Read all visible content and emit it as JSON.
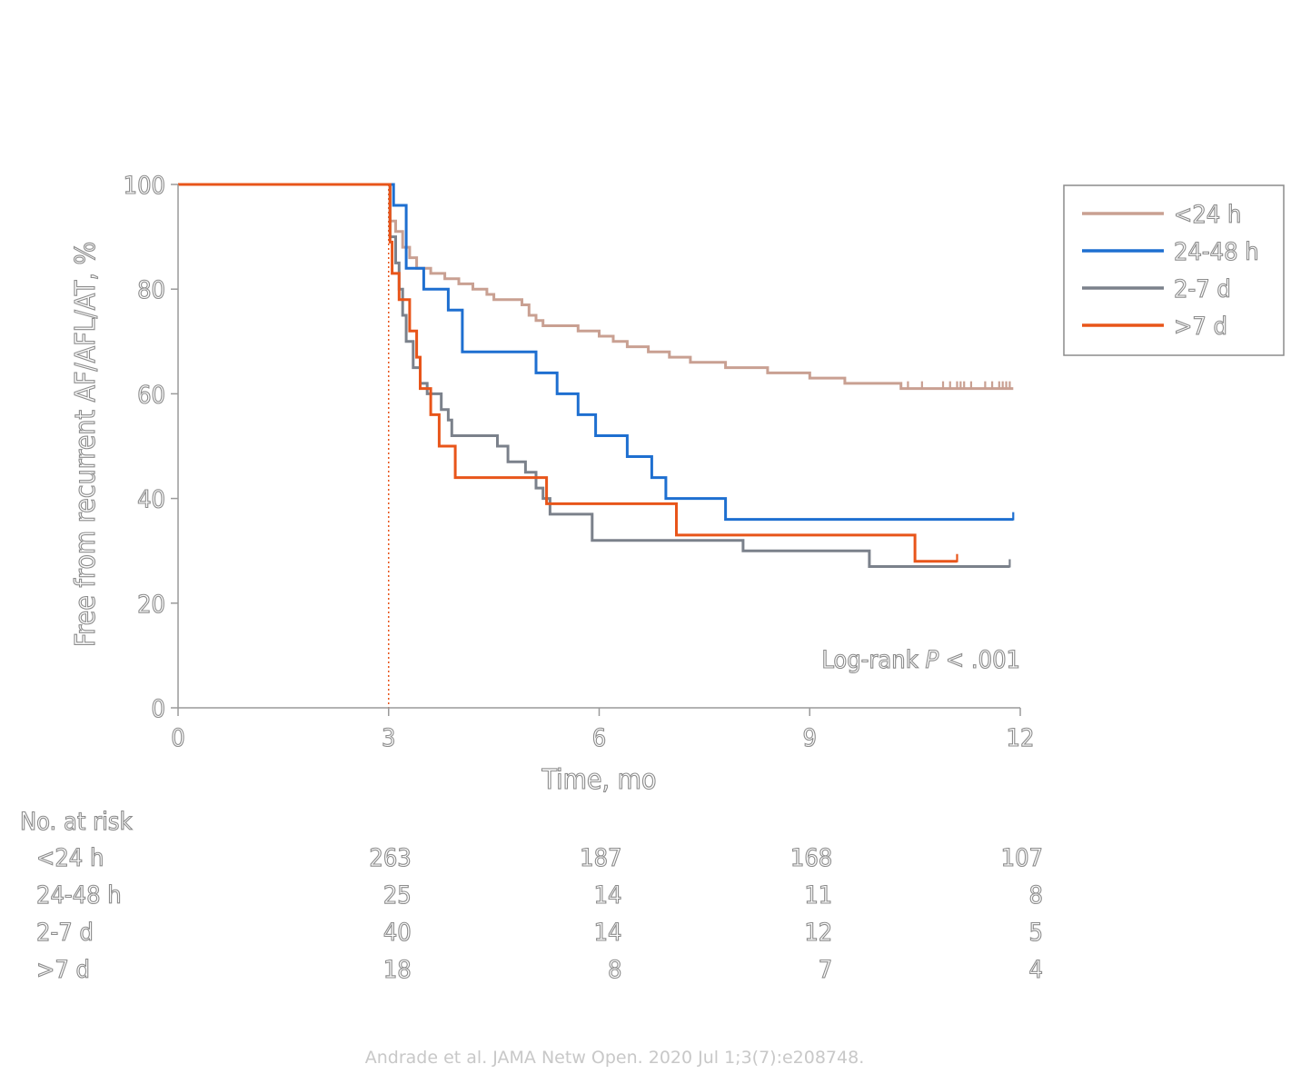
{
  "chart_data": {
    "type": "line",
    "step": true,
    "ylabel": "Free from recurrent AF/AFL/AT, %",
    "xlabel": "Time, mo",
    "xlim": [
      0,
      12
    ],
    "ylim": [
      0,
      100
    ],
    "x_ticks": [
      "0",
      "3",
      "6",
      "9",
      "12"
    ],
    "y_ticks": [
      "0",
      "20",
      "40",
      "60",
      "80",
      "100"
    ],
    "reference_line_x": 3,
    "annotation": {
      "text_main": "Log-rank ",
      "text_italic": "P",
      "text_tail": " < .001"
    },
    "legend": {
      "position": "top-right"
    },
    "series": [
      {
        "name": "<24 h",
        "color": "#c9a092",
        "points": [
          [
            0,
            100
          ],
          [
            3.02,
            100
          ],
          [
            3.02,
            93
          ],
          [
            3.1,
            91
          ],
          [
            3.2,
            88
          ],
          [
            3.3,
            86
          ],
          [
            3.4,
            84
          ],
          [
            3.6,
            83
          ],
          [
            3.8,
            82
          ],
          [
            4.0,
            81
          ],
          [
            4.2,
            80
          ],
          [
            4.4,
            79
          ],
          [
            4.5,
            78
          ],
          [
            4.9,
            77
          ],
          [
            5.0,
            75
          ],
          [
            5.1,
            74
          ],
          [
            5.2,
            73
          ],
          [
            5.6,
            73
          ],
          [
            5.7,
            72
          ],
          [
            6.0,
            71
          ],
          [
            6.2,
            70
          ],
          [
            6.4,
            69
          ],
          [
            6.7,
            68
          ],
          [
            7.0,
            67
          ],
          [
            7.3,
            66
          ],
          [
            7.8,
            65
          ],
          [
            8.4,
            64
          ],
          [
            9.0,
            63
          ],
          [
            9.5,
            62
          ],
          [
            10.3,
            61
          ],
          [
            11.9,
            61
          ]
        ],
        "censor_x": [
          10.4,
          10.6,
          10.9,
          11.0,
          11.1,
          11.15,
          11.2,
          11.3,
          11.5,
          11.6,
          11.7,
          11.75,
          11.8,
          11.85
        ]
      },
      {
        "name": "24-48 h",
        "color": "#1e6fd0",
        "points": [
          [
            0,
            100
          ],
          [
            3.07,
            100
          ],
          [
            3.07,
            96
          ],
          [
            3.25,
            96
          ],
          [
            3.25,
            84
          ],
          [
            3.5,
            84
          ],
          [
            3.5,
            80
          ],
          [
            3.85,
            80
          ],
          [
            3.85,
            76
          ],
          [
            4.05,
            76
          ],
          [
            4.05,
            68
          ],
          [
            5.1,
            68
          ],
          [
            5.1,
            64
          ],
          [
            5.4,
            64
          ],
          [
            5.4,
            60
          ],
          [
            5.7,
            60
          ],
          [
            5.7,
            56
          ],
          [
            5.95,
            56
          ],
          [
            5.95,
            52
          ],
          [
            6.4,
            52
          ],
          [
            6.4,
            48
          ],
          [
            6.75,
            48
          ],
          [
            6.75,
            44
          ],
          [
            6.95,
            44
          ],
          [
            6.95,
            40
          ],
          [
            7.8,
            40
          ],
          [
            7.8,
            36
          ],
          [
            11.9,
            36
          ]
        ],
        "censor_x": [
          11.9
        ]
      },
      {
        "name": "2-7 d",
        "color": "#7b818b",
        "points": [
          [
            0,
            100
          ],
          [
            3.02,
            100
          ],
          [
            3.02,
            90
          ],
          [
            3.1,
            85
          ],
          [
            3.15,
            80
          ],
          [
            3.2,
            75
          ],
          [
            3.25,
            70
          ],
          [
            3.35,
            65
          ],
          [
            3.45,
            62
          ],
          [
            3.55,
            60
          ],
          [
            3.75,
            57
          ],
          [
            3.85,
            55
          ],
          [
            3.9,
            52
          ],
          [
            4.45,
            52
          ],
          [
            4.55,
            50
          ],
          [
            4.7,
            47
          ],
          [
            4.95,
            45
          ],
          [
            5.1,
            42
          ],
          [
            5.2,
            40
          ],
          [
            5.3,
            37
          ],
          [
            5.8,
            37
          ],
          [
            5.9,
            32
          ],
          [
            7.8,
            32
          ],
          [
            8.05,
            30
          ],
          [
            9.8,
            30
          ],
          [
            9.85,
            27
          ],
          [
            11.85,
            27
          ]
        ],
        "censor_x": [
          11.85
        ]
      },
      {
        "name": ">7 d",
        "color": "#e8551a",
        "points": [
          [
            0,
            100
          ],
          [
            3.02,
            100
          ],
          [
            3.02,
            89
          ],
          [
            3.05,
            83
          ],
          [
            3.15,
            78
          ],
          [
            3.3,
            78
          ],
          [
            3.3,
            72
          ],
          [
            3.4,
            67
          ],
          [
            3.45,
            61
          ],
          [
            3.6,
            61
          ],
          [
            3.6,
            56
          ],
          [
            3.72,
            56
          ],
          [
            3.72,
            50
          ],
          [
            3.95,
            50
          ],
          [
            3.95,
            44
          ],
          [
            5.25,
            44
          ],
          [
            5.25,
            39
          ],
          [
            7.1,
            39
          ],
          [
            7.1,
            33
          ],
          [
            10.5,
            33
          ],
          [
            10.5,
            28
          ],
          [
            11.1,
            28
          ]
        ],
        "censor_x": [
          11.1
        ]
      }
    ],
    "risk_table": {
      "title": "No. at risk",
      "times": [
        "3",
        "6",
        "9",
        "12"
      ],
      "rows": [
        {
          "label": "<24 h",
          "counts": [
            "263",
            "187",
            "168",
            "107"
          ]
        },
        {
          "label": "24-48 h",
          "counts": [
            "25",
            "14",
            "11",
            "8"
          ]
        },
        {
          "label": "2-7 d",
          "counts": [
            "40",
            "14",
            "12",
            "5"
          ]
        },
        {
          "label": ">7 d",
          "counts": [
            "18",
            "8",
            "7",
            "4"
          ]
        }
      ]
    }
  },
  "citation": "Andrade et al. JAMA Netw Open. 2020 Jul 1;3(7):e208748."
}
